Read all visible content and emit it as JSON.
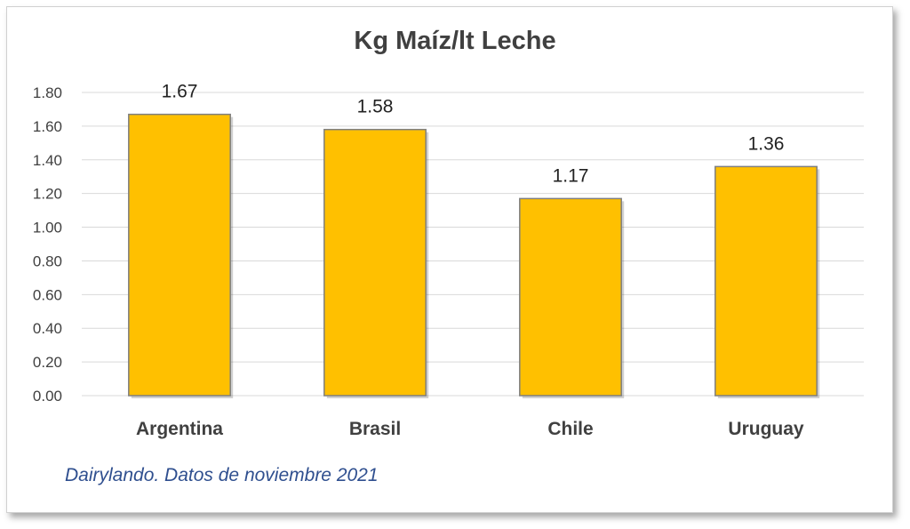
{
  "chart_data": {
    "type": "bar",
    "title": "Kg Maíz/lt Leche",
    "categories": [
      "Argentina",
      "Brasil",
      "Chile",
      "Uruguay"
    ],
    "values": [
      1.67,
      1.58,
      1.17,
      1.36
    ],
    "data_labels": [
      "1.67",
      "1.58",
      "1.17",
      "1.36"
    ],
    "yticks": [
      "0.00",
      "0.20",
      "0.40",
      "0.60",
      "0.80",
      "1.00",
      "1.20",
      "1.40",
      "1.60",
      "1.80"
    ],
    "ylim": [
      0,
      1.8
    ],
    "grid": true,
    "legend": "none",
    "bar_color": "#FFC000",
    "bar_border_color": "#7F7F7F",
    "source_note": "Dairylando. Datos de noviembre 2021"
  },
  "colors": {
    "source_text": "#2F4F8F",
    "gridline": "#D9D9D9",
    "text": "#404040"
  }
}
